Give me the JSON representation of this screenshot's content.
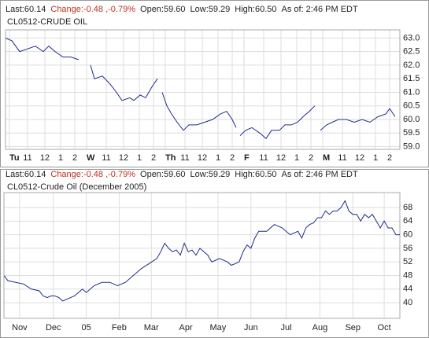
{
  "chart_data": [
    {
      "type": "line",
      "title": "CL0512-CRUDE OIL",
      "quote": [
        "Last:60.14",
        "Change:-0.48 ,-0.79%",
        "Open:59.60",
        "Low:59.29",
        "High:60.50",
        "As of: 2:46 PM EDT"
      ],
      "color": "#1f2a8c",
      "grid": true,
      "x": [
        0,
        0.4,
        0.9,
        1.4,
        1.9,
        2.4,
        2.75,
        3.15,
        3.65,
        4.15,
        4.65,
        5.0,
        5.4,
        5.65,
        6.15,
        6.65,
        7.05,
        7.4,
        7.9,
        8.15,
        8.55,
        8.9,
        9.3,
        9.65,
        9.8,
        9.95,
        10.25,
        10.55,
        10.9,
        11.3,
        11.65,
        12.15,
        12.65,
        13.15,
        13.65,
        14.05,
        14.4,
        14.65,
        14.8,
        14.9,
        15.25,
        15.65,
        16.15,
        16.55,
        16.9,
        17.4,
        17.75,
        18.15,
        18.55,
        18.9,
        19.3,
        19.65,
        19.8,
        20.0,
        20.4,
        20.75,
        21.15,
        21.65,
        22.15,
        22.65,
        23.15,
        23.65,
        24.15,
        24.4,
        24.75
      ],
      "values": [
        63.0,
        62.9,
        62.5,
        62.6,
        62.7,
        62.5,
        62.7,
        62.5,
        62.3,
        62.3,
        62.2,
        null,
        62.0,
        61.5,
        61.6,
        61.3,
        61.0,
        60.7,
        60.8,
        60.7,
        60.9,
        60.8,
        61.2,
        61.5,
        null,
        61.0,
        60.5,
        60.2,
        59.9,
        59.6,
        59.8,
        59.8,
        59.9,
        60.0,
        60.2,
        60.3,
        60.0,
        59.7,
        null,
        59.4,
        59.6,
        59.7,
        59.5,
        59.3,
        59.6,
        59.6,
        59.8,
        59.8,
        59.9,
        60.1,
        60.3,
        60.5,
        null,
        59.6,
        59.8,
        59.9,
        60.0,
        60.0,
        59.9,
        60.0,
        59.9,
        60.1,
        60.2,
        60.4,
        60.1
      ],
      "xlim": [
        0,
        25.05
      ],
      "ylim": [
        58.9,
        63.3
      ],
      "xticks": [
        {
          "value": 0.25,
          "label": "Tu"
        },
        {
          "value": 1.4,
          "label": "11"
        },
        {
          "value": 2.5,
          "label": "12"
        },
        {
          "value": 3.5,
          "label": "1"
        },
        {
          "value": 4.4,
          "label": "2"
        },
        {
          "value": 5.15,
          "label": "W"
        },
        {
          "value": 6.4,
          "label": "11"
        },
        {
          "value": 7.5,
          "label": "12"
        },
        {
          "value": 8.5,
          "label": "1"
        },
        {
          "value": 9.4,
          "label": "2"
        },
        {
          "value": 10.15,
          "label": "Th"
        },
        {
          "value": 11.4,
          "label": "11"
        },
        {
          "value": 12.5,
          "label": "12"
        },
        {
          "value": 13.5,
          "label": "1"
        },
        {
          "value": 14.4,
          "label": "2"
        },
        {
          "value": 15.15,
          "label": "F"
        },
        {
          "value": 16.4,
          "label": "11"
        },
        {
          "value": 17.5,
          "label": "12"
        },
        {
          "value": 18.5,
          "label": "1"
        },
        {
          "value": 19.4,
          "label": "2"
        },
        {
          "value": 20.15,
          "label": "M"
        },
        {
          "value": 21.4,
          "label": "11"
        },
        {
          "value": 22.5,
          "label": "12"
        },
        {
          "value": 23.5,
          "label": "1"
        },
        {
          "value": 24.4,
          "label": "2"
        }
      ],
      "yticks": [
        {
          "value": 59.0,
          "label": "59.0"
        },
        {
          "value": 59.5,
          "label": "59.5"
        },
        {
          "value": 60.0,
          "label": "60.0"
        },
        {
          "value": 60.5,
          "label": "60.5"
        },
        {
          "value": 61.0,
          "label": "61.0"
        },
        {
          "value": 61.5,
          "label": "61.5"
        },
        {
          "value": 62.0,
          "label": "62.0"
        },
        {
          "value": 62.5,
          "label": "62.5"
        },
        {
          "value": 63.0,
          "label": "63.0"
        }
      ]
    },
    {
      "type": "line",
      "title": "CL0512-Crude Oil (December 2005)",
      "quote": [
        "Last:60.14",
        "Change:-0.48 ,-0.79%",
        "Open:59.60",
        "Low:59.29",
        "High:60.50",
        "As of: 2:46 PM EDT"
      ],
      "color": "#1f2a8c",
      "grid": true,
      "x": [
        0,
        2.5,
        7.5,
        12.5,
        17.5,
        22.5,
        25,
        27.5,
        30,
        32.5,
        35,
        37.5,
        42.5,
        45,
        47.5,
        50,
        52.5,
        57.5,
        62.5,
        67.5,
        72.5,
        77.5,
        82.5,
        87.5,
        92.5,
        97.5,
        100,
        102.5,
        105,
        107.5,
        110,
        112.5,
        115,
        117.5,
        120,
        122.5,
        125,
        127.5,
        130,
        132.5,
        137.5,
        142.5,
        145,
        147.5,
        150,
        152.5,
        155,
        157.5,
        160,
        162.5,
        167.5,
        172.5,
        177.5,
        182.5,
        187.5,
        190,
        192.5,
        195,
        197.5,
        200,
        202.5,
        205,
        207.5,
        210,
        212.5,
        215,
        217.5,
        220,
        222.5,
        225,
        227.5,
        230,
        232.5,
        235,
        237.5,
        240,
        242.5,
        245,
        247.5,
        250,
        252.5
      ],
      "values": [
        48,
        46.5,
        46,
        45.5,
        44,
        43.5,
        42,
        41.5,
        42,
        42,
        41.5,
        40.5,
        41.5,
        42,
        43,
        44,
        43,
        45,
        46,
        46,
        45,
        46,
        48,
        50,
        51.5,
        53,
        55,
        57.5,
        56,
        55,
        55.5,
        54,
        57.5,
        55,
        55.5,
        54,
        56,
        55,
        54,
        52,
        53,
        52,
        51,
        51.5,
        52,
        55,
        57,
        56,
        59,
        61,
        61,
        63,
        62,
        60,
        61,
        59,
        62,
        63,
        63.5,
        65,
        65,
        67,
        66,
        67,
        67,
        68,
        70,
        67,
        66,
        66,
        64,
        66,
        65,
        66,
        64,
        62,
        64,
        62,
        62,
        60,
        60
      ],
      "xlim": [
        0,
        252.5
      ],
      "ylim": [
        35.4,
        72.4
      ],
      "xticks": [
        {
          "value": 10,
          "label": "Nov"
        },
        {
          "value": 31.5,
          "label": "Dec"
        },
        {
          "value": 52.5,
          "label": "05"
        },
        {
          "value": 73.5,
          "label": "Feb"
        },
        {
          "value": 94,
          "label": "Mar"
        },
        {
          "value": 116,
          "label": "Apr"
        },
        {
          "value": 136.5,
          "label": "May"
        },
        {
          "value": 157.5,
          "label": "Jun"
        },
        {
          "value": 180,
          "label": "Jul"
        },
        {
          "value": 201.5,
          "label": "Aug"
        },
        {
          "value": 222.5,
          "label": "Sep"
        },
        {
          "value": 242.5,
          "label": "Oct"
        }
      ],
      "yticks": [
        40,
        44,
        48,
        52,
        56,
        60,
        64,
        68
      ]
    }
  ]
}
